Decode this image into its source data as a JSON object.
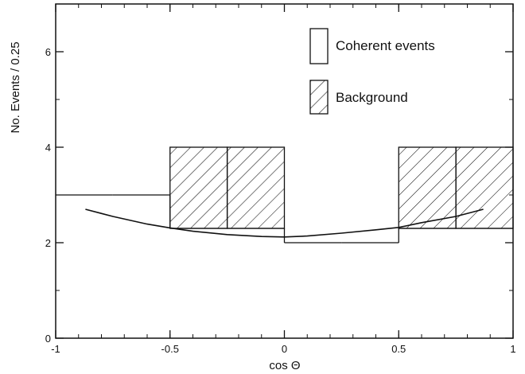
{
  "chart_data": {
    "type": "bar",
    "xlabel": "cos Θ",
    "ylabel": "No. Events / 0.25",
    "xlim": [
      -1,
      1
    ],
    "ylim": [
      0,
      7
    ],
    "xticks": [
      -1,
      -0.5,
      0,
      0.5,
      1
    ],
    "xtick_labels": [
      "-1",
      "-0.5",
      "0",
      "0.5",
      "1"
    ],
    "yticks": [
      0,
      2,
      4,
      6
    ],
    "ytick_labels": [
      "0",
      "2",
      "4",
      "6"
    ],
    "grid": false,
    "legend_position": "top-right",
    "bins": [
      {
        "x0": -1.0,
        "x1": -0.75,
        "coherent": 3.0,
        "background": 0.0
      },
      {
        "x0": -0.75,
        "x1": -0.5,
        "coherent": 3.0,
        "background": 0.0
      },
      {
        "x0": -0.5,
        "x1": -0.25,
        "coherent": 2.3,
        "background": 1.7
      },
      {
        "x0": -0.25,
        "x1": 0.0,
        "coherent": 2.3,
        "background": 1.7
      },
      {
        "x0": 0.0,
        "x1": 0.25,
        "coherent": 2.0,
        "background": 0.0
      },
      {
        "x0": 0.25,
        "x1": 0.5,
        "coherent": 2.0,
        "background": 0.0
      },
      {
        "x0": 0.5,
        "x1": 0.75,
        "coherent": 2.3,
        "background": 1.7
      },
      {
        "x0": 0.75,
        "x1": 1.0,
        "coherent": 2.3,
        "background": 1.7
      }
    ],
    "curve": {
      "x": [
        -0.87,
        -0.75,
        -0.6,
        -0.5,
        -0.4,
        -0.25,
        -0.1,
        0.0,
        0.1,
        0.25,
        0.4,
        0.5,
        0.6,
        0.75,
        0.87
      ],
      "y": [
        2.7,
        2.55,
        2.39,
        2.31,
        2.24,
        2.17,
        2.13,
        2.12,
        2.14,
        2.2,
        2.27,
        2.32,
        2.42,
        2.55,
        2.7
      ]
    },
    "series": [
      {
        "name": "Coherent events",
        "style": "open"
      },
      {
        "name": "Background",
        "style": "hatched"
      }
    ]
  },
  "colors": {
    "line": "#111111",
    "background": "#ffffff"
  }
}
